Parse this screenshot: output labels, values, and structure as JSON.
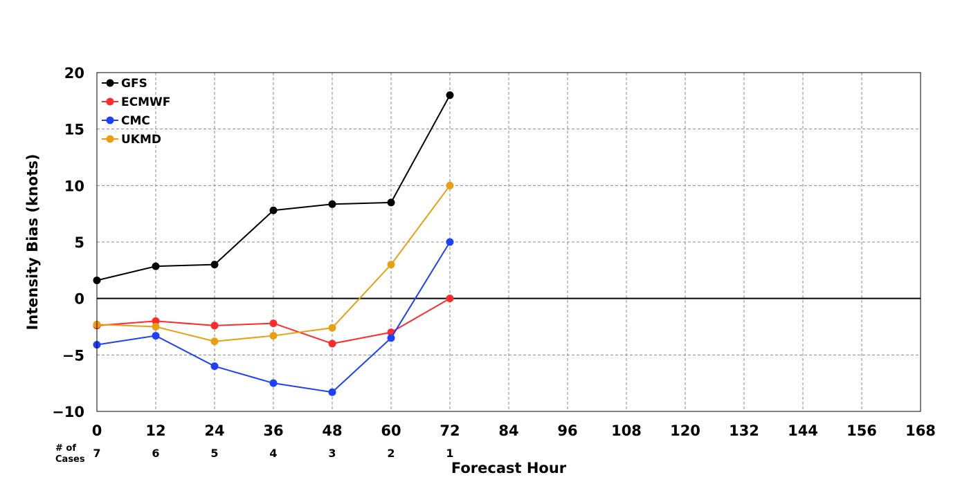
{
  "chart_data": {
    "type": "line",
    "xlabel": "Forecast Hour",
    "ylabel": "Intensity Bias (knots)",
    "xlim": [
      0,
      168
    ],
    "ylim": [
      -10,
      20
    ],
    "x_ticks": [
      0,
      12,
      24,
      36,
      48,
      60,
      72,
      84,
      96,
      108,
      120,
      132,
      144,
      156,
      168
    ],
    "y_ticks": [
      20,
      15,
      10,
      5,
      0,
      -5,
      -10
    ],
    "y_tick_labels": [
      "20",
      "15",
      "10",
      "5",
      "0",
      "−5",
      "−10"
    ],
    "grid": true,
    "legend_position": "top-left",
    "cases_header_line1": "# of",
    "cases_header_line2": "Cases",
    "cases": [
      {
        "x": 0,
        "n": "7"
      },
      {
        "x": 12,
        "n": "6"
      },
      {
        "x": 24,
        "n": "5"
      },
      {
        "x": 36,
        "n": "4"
      },
      {
        "x": 48,
        "n": "3"
      },
      {
        "x": 60,
        "n": "2"
      },
      {
        "x": 72,
        "n": "1"
      }
    ],
    "x": [
      0,
      12,
      24,
      36,
      48,
      60,
      72
    ],
    "series": [
      {
        "name": "GFS",
        "color": "#000000",
        "values": [
          1.6,
          2.85,
          3.0,
          7.8,
          8.35,
          8.5,
          18.0
        ]
      },
      {
        "name": "ECMWF",
        "color": "#ff2a2a",
        "values": [
          -2.4,
          -2.0,
          -2.4,
          -2.2,
          -4.0,
          -3.0,
          0.0
        ]
      },
      {
        "name": "CMC",
        "color": "#1f3fff",
        "values": [
          -4.1,
          -3.3,
          -6.0,
          -7.5,
          -8.3,
          -3.5,
          5.0
        ]
      },
      {
        "name": "UKMD",
        "color": "#e8a010",
        "values": [
          -2.3,
          -2.5,
          -3.8,
          -3.3,
          -2.6,
          3.0,
          10.0
        ]
      }
    ]
  }
}
